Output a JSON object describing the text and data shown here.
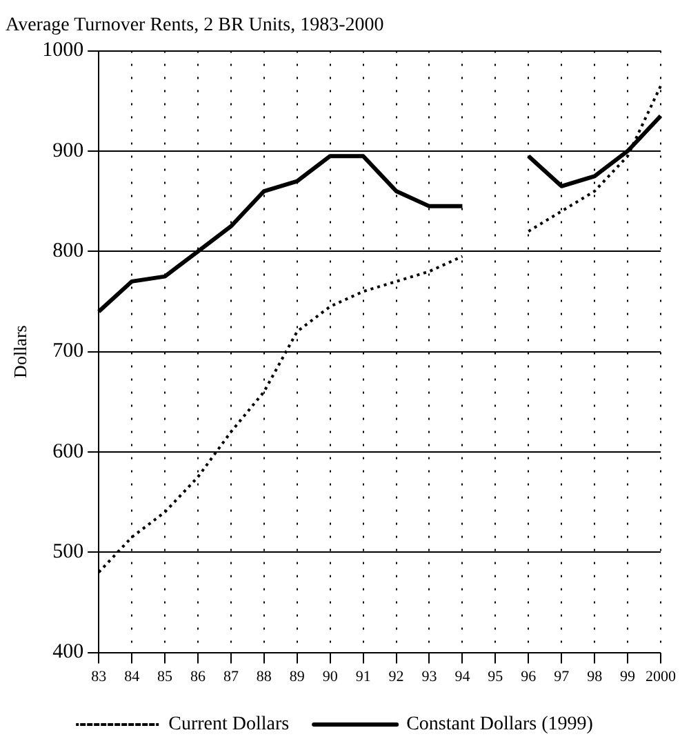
{
  "chart_data": {
    "type": "line",
    "title": "Average Turnover Rents, 2 BR Units, 1983-2000",
    "ylabel": "Dollars",
    "categories": [
      "83",
      "84",
      "85",
      "86",
      "87",
      "88",
      "89",
      "90",
      "91",
      "92",
      "93",
      "94",
      "95",
      "96",
      "97",
      "98",
      "99",
      "2000"
    ],
    "series": [
      {
        "name": "Current Dollars",
        "color": "#000000",
        "line_style": "dotted",
        "values": [
          480,
          515,
          540,
          575,
          620,
          660,
          720,
          745,
          760,
          770,
          780,
          795,
          null,
          820,
          840,
          860,
          895,
          965
        ]
      },
      {
        "name": "Constant Dollars (1999)",
        "color": "#000000",
        "line_style": "solid",
        "values": [
          740,
          770,
          775,
          800,
          825,
          860,
          870,
          895,
          895,
          860,
          845,
          845,
          null,
          895,
          865,
          875,
          900,
          935
        ]
      }
    ],
    "ylim": [
      400,
      1000
    ],
    "yticks": [
      400,
      500,
      600,
      700,
      800,
      900,
      1000
    ],
    "grid": true,
    "legend": "bottom",
    "marker": "none"
  }
}
